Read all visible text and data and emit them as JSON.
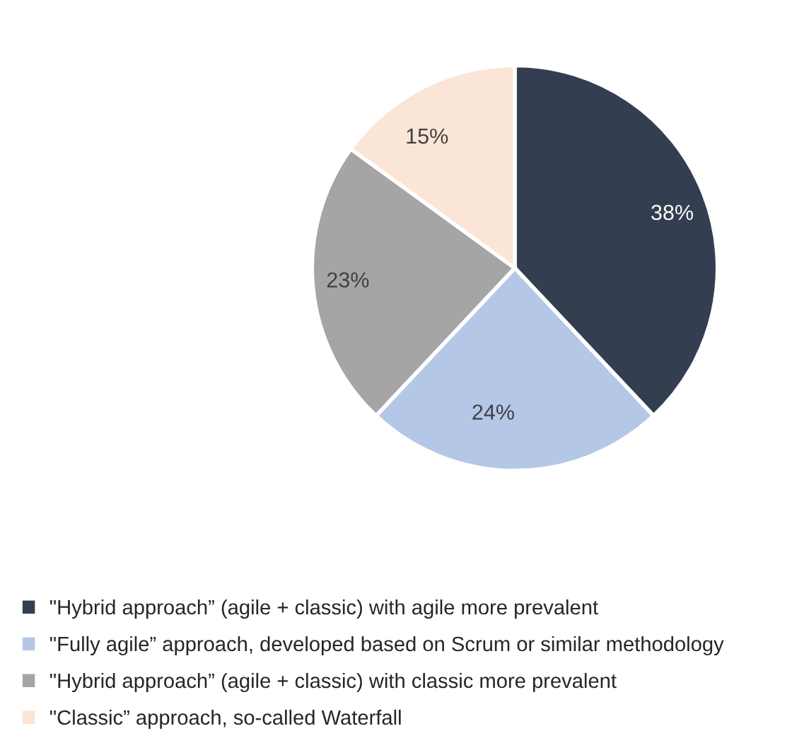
{
  "chart_data": {
    "type": "pie",
    "categories": [
      "\"Hybrid approach” (agile + classic) with agile more prevalent",
      "\"Fully agile” approach, developed based on Scrum or similar methodology",
      "\"Hybrid approach” (agile + classic) with classic more prevalent",
      "\"Classic” approach, so-called Waterfall"
    ],
    "values": [
      38,
      24,
      23,
      15
    ],
    "colors": [
      "#333f50",
      "#b4c7e7",
      "#a5a5a5",
      "#fbe5d6"
    ],
    "value_labels": [
      "38%",
      "24%",
      "23%",
      "15%"
    ],
    "legend": "bottom"
  }
}
